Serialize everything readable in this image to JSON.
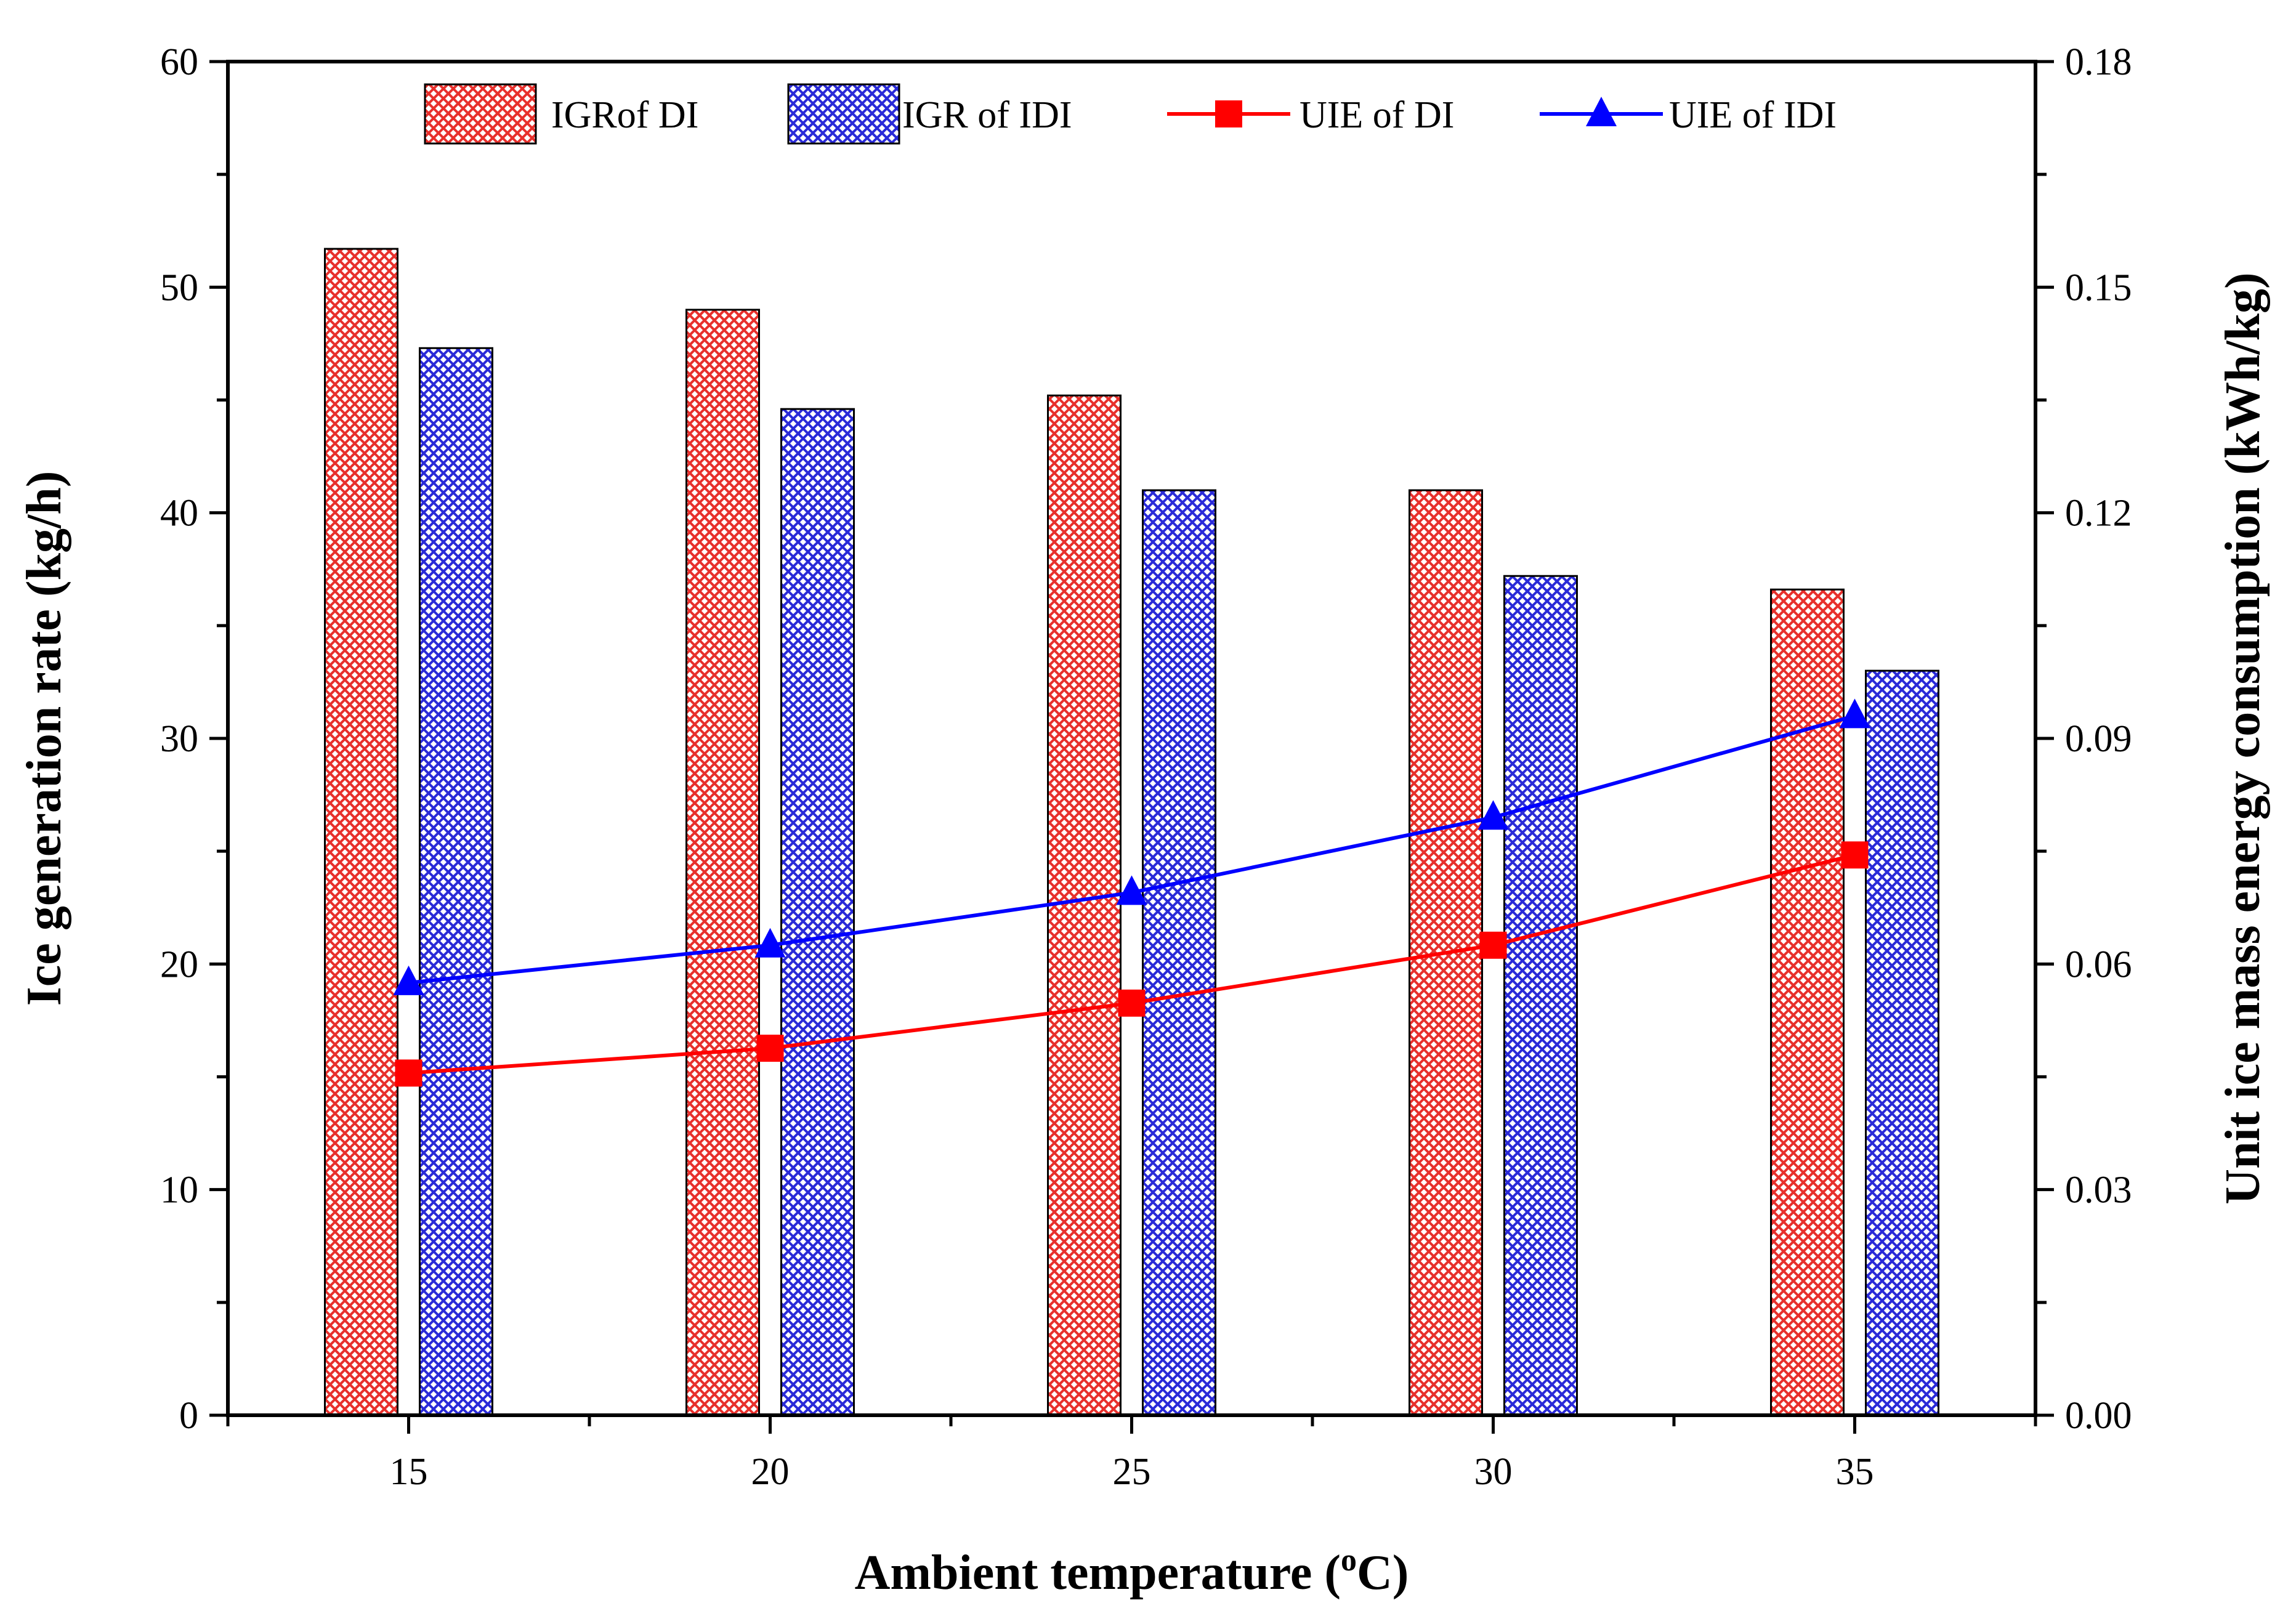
{
  "chart_data": {
    "type": "bar+line",
    "title": "",
    "xlabel": "Ambient temperature (°C)",
    "xlabel_parts": {
      "before": "Ambient temperature (",
      "super": "o",
      "after": "C)"
    },
    "ylabel": "Ice generation rate (kg/h)",
    "y2label": "Unit ice mass energy consumption (kWh/kg)",
    "categories": [
      "15",
      "20",
      "25",
      "30",
      "35"
    ],
    "x_range": [
      12.5,
      37.5
    ],
    "ylim": [
      0,
      60
    ],
    "yticks": [
      "0",
      "10",
      "20",
      "30",
      "40",
      "50",
      "60"
    ],
    "y2lim": [
      0,
      0.18
    ],
    "y2ticks": [
      "0.00",
      "0.03",
      "0.06",
      "0.09",
      "0.12",
      "0.15",
      "0.18"
    ],
    "legend_position": "top",
    "bar_series": [
      {
        "name": "IGRof DI",
        "color": "#e8302c",
        "axis": "left",
        "values": [
          51.7,
          49.0,
          45.2,
          41.0,
          36.6
        ]
      },
      {
        "name": "IGR of IDI",
        "color": "#2a2ad8",
        "axis": "left",
        "values": [
          47.3,
          44.6,
          41.0,
          37.2,
          33.0
        ]
      }
    ],
    "line_series": [
      {
        "name": "UIE of DI",
        "color": "#ff0000",
        "marker": "square",
        "axis": "right",
        "values": [
          0.0455,
          0.0488,
          0.0548,
          0.0625,
          0.0745
        ]
      },
      {
        "name": "UIE of IDI",
        "color": "#0000ff",
        "marker": "triangle",
        "axis": "right",
        "values": [
          0.0575,
          0.0625,
          0.0695,
          0.0795,
          0.093
        ]
      }
    ]
  }
}
